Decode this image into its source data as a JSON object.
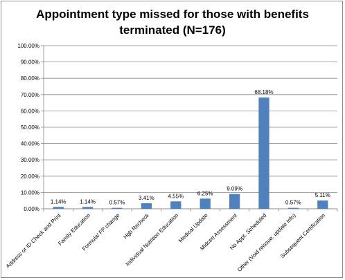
{
  "chart_data": {
    "type": "bar",
    "title_line1": "Appointment type missed for those with benefits",
    "title_line2": "terminated (N=176)",
    "categories": [
      "Address or ID Check and Print",
      "Family Education",
      "Formula/ FP change",
      "Hgb Recheck",
      "Individual Nutrition Education",
      "Medical Update",
      "Midcert Assessment",
      "No Appt. Scheduled",
      "Other (Void reissue; update info)",
      "Subsequent Certification"
    ],
    "values": [
      1.14,
      1.14,
      0.57,
      3.41,
      4.55,
      6.25,
      9.09,
      68.18,
      0.57,
      5.11
    ],
    "data_labels": [
      "1.14%",
      "1.14%",
      "0.57%",
      "3.41%",
      "4.55%",
      "6.25%",
      "9.09%",
      "68.18%",
      "0.57%",
      "5.11%"
    ],
    "y_ticks": [
      "0.00%",
      "10.00%",
      "20.00%",
      "30.00%",
      "40.00%",
      "50.00%",
      "60.00%",
      "70.00%",
      "80.00%",
      "90.00%",
      "100.00%"
    ],
    "ylim": [
      0,
      100
    ],
    "grid": true,
    "legend": "none",
    "bar_color": "#4f81bd",
    "grid_color": "#868686"
  }
}
